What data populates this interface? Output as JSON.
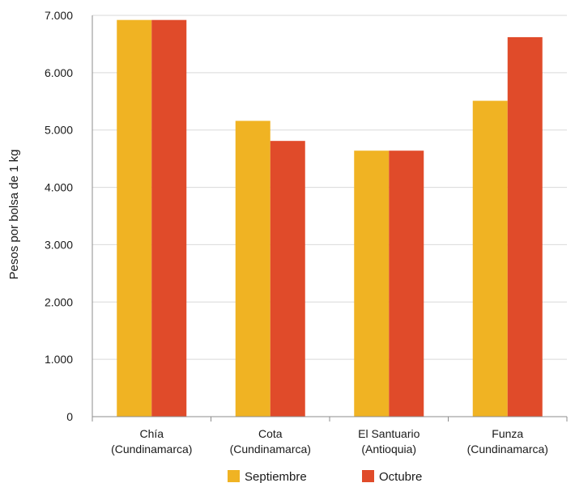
{
  "chart_data": {
    "type": "bar",
    "title": "",
    "xlabel": "",
    "ylabel": "Pesos por bolsa de 1 kg",
    "categories": [
      [
        "Chía",
        "(Cundinamarca)"
      ],
      [
        "Cota",
        "(Cundinamarca)"
      ],
      [
        "El Santuario",
        "(Antioquia)"
      ],
      [
        "Funza",
        "(Cundinamarca)"
      ]
    ],
    "series": [
      {
        "name": "Septiembre",
        "color": "#F0B323",
        "values": [
          6920,
          5160,
          4640,
          5510
        ]
      },
      {
        "name": "Octubre",
        "color": "#E04B2A",
        "values": [
          6920,
          4810,
          4640,
          6620
        ]
      }
    ],
    "ylim": [
      0,
      7000
    ],
    "yticks": [
      {
        "value": 0,
        "label": "0"
      },
      {
        "value": 1000,
        "label": "1.000"
      },
      {
        "value": 2000,
        "label": "2.000"
      },
      {
        "value": 3000,
        "label": "3.000"
      },
      {
        "value": 4000,
        "label": "4.000"
      },
      {
        "value": 5000,
        "label": "5.000"
      },
      {
        "value": 6000,
        "label": "6.000"
      },
      {
        "value": 7000,
        "label": "7.000"
      }
    ],
    "grid": true,
    "legend": "bottom-center"
  }
}
